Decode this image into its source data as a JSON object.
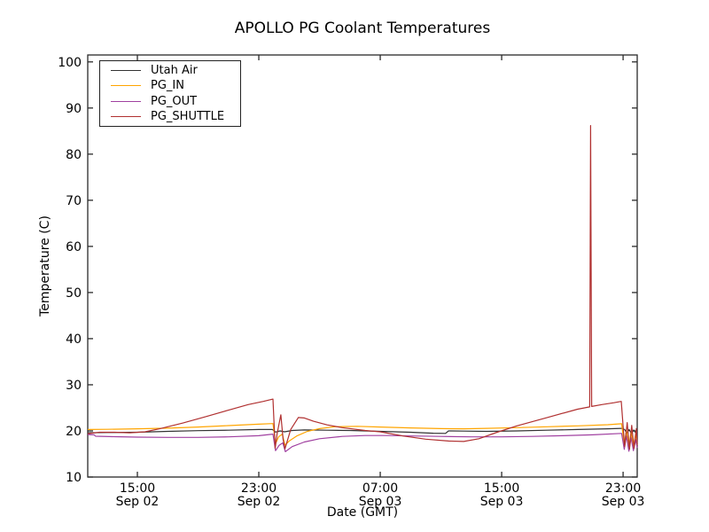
{
  "chart_data": {
    "type": "line",
    "title": "APOLLO PG Coolant Temperatures",
    "xlabel": "Date (GMT)",
    "ylabel": "Temperature (C)",
    "ylim": [
      10,
      100
    ],
    "y_ticks": [
      10,
      20,
      30,
      40,
      50,
      60,
      70,
      80,
      90,
      100
    ],
    "x_units_hours_since": "Sep 02 00:00 GMT",
    "x_range_hours": [
      11.73,
      47.93
    ],
    "x_ticks": [
      {
        "hours": 15,
        "time": "15:00",
        "date": "Sep 02"
      },
      {
        "hours": 23,
        "time": "23:00",
        "date": "Sep 02"
      },
      {
        "hours": 31,
        "time": "07:00",
        "date": "Sep 03"
      },
      {
        "hours": 39,
        "time": "15:00",
        "date": "Sep 03"
      },
      {
        "hours": 47,
        "time": "23:00",
        "date": "Sep 03"
      }
    ],
    "grid": false,
    "legend_position": "upper left",
    "series": [
      {
        "name": "Utah Air",
        "color": "#333333",
        "points": [
          [
            11.73,
            19.6
          ],
          [
            13,
            19.65
          ],
          [
            15,
            19.7
          ],
          [
            17,
            19.9
          ],
          [
            19,
            20.05
          ],
          [
            21,
            20.15
          ],
          [
            23,
            20.3
          ],
          [
            23.9,
            20.3
          ],
          [
            24.1,
            19.75
          ],
          [
            24.4,
            20.0
          ],
          [
            24.7,
            19.8
          ],
          [
            25.2,
            20.1
          ],
          [
            26,
            20.2
          ],
          [
            27.5,
            20.15
          ],
          [
            29,
            20.1
          ],
          [
            31,
            19.9
          ],
          [
            33,
            19.7
          ],
          [
            34.5,
            19.5
          ],
          [
            35.3,
            19.45
          ],
          [
            35.5,
            20.0
          ],
          [
            36.5,
            19.95
          ],
          [
            38,
            19.9
          ],
          [
            40,
            20.0
          ],
          [
            42,
            20.15
          ],
          [
            44,
            20.3
          ],
          [
            46,
            20.45
          ],
          [
            46.9,
            20.55
          ],
          [
            47.1,
            20.3
          ],
          [
            47.25,
            19.5
          ],
          [
            47.4,
            20.3
          ],
          [
            47.55,
            19.4
          ],
          [
            47.7,
            20.2
          ],
          [
            47.85,
            19.5
          ],
          [
            47.93,
            19.9
          ]
        ]
      },
      {
        "name": "PG_IN",
        "color": "#ffa500",
        "points": [
          [
            11.73,
            20.3
          ],
          [
            13,
            20.35
          ],
          [
            15,
            20.45
          ],
          [
            17,
            20.6
          ],
          [
            19,
            20.85
          ],
          [
            21,
            21.15
          ],
          [
            23,
            21.45
          ],
          [
            23.93,
            21.6
          ],
          [
            24.1,
            17.2
          ],
          [
            24.3,
            18.7
          ],
          [
            24.55,
            19.3
          ],
          [
            24.72,
            16.9
          ],
          [
            25,
            17.8
          ],
          [
            25.5,
            18.9
          ],
          [
            26.2,
            19.9
          ],
          [
            27,
            20.5
          ],
          [
            28,
            20.9
          ],
          [
            29.5,
            21.0
          ],
          [
            31,
            20.85
          ],
          [
            33,
            20.65
          ],
          [
            35,
            20.5
          ],
          [
            36.5,
            20.45
          ],
          [
            38,
            20.55
          ],
          [
            40,
            20.7
          ],
          [
            42,
            20.9
          ],
          [
            44,
            21.1
          ],
          [
            46,
            21.35
          ],
          [
            46.9,
            21.55
          ],
          [
            47.08,
            17.0
          ],
          [
            47.22,
            20.2
          ],
          [
            47.38,
            16.3
          ],
          [
            47.53,
            19.9
          ],
          [
            47.68,
            16.4
          ],
          [
            47.83,
            19.4
          ],
          [
            47.93,
            16.9
          ]
        ]
      },
      {
        "name": "PG_OUT",
        "color": "#a040a0",
        "points": [
          [
            11.73,
            19.2
          ],
          [
            12.15,
            19.15
          ],
          [
            12.25,
            18.85
          ],
          [
            13.5,
            18.75
          ],
          [
            15,
            18.65
          ],
          [
            17,
            18.6
          ],
          [
            19,
            18.6
          ],
          [
            21,
            18.7
          ],
          [
            23,
            18.95
          ],
          [
            23.93,
            19.3
          ],
          [
            24.1,
            15.7
          ],
          [
            24.35,
            16.9
          ],
          [
            24.58,
            17.4
          ],
          [
            24.75,
            15.5
          ],
          [
            25.2,
            16.6
          ],
          [
            26,
            17.6
          ],
          [
            27,
            18.3
          ],
          [
            28.5,
            18.8
          ],
          [
            30,
            19.0
          ],
          [
            31.5,
            19.0
          ],
          [
            33,
            18.9
          ],
          [
            35,
            18.8
          ],
          [
            37,
            18.7
          ],
          [
            39,
            18.7
          ],
          [
            41,
            18.8
          ],
          [
            43,
            18.95
          ],
          [
            45,
            19.15
          ],
          [
            46.9,
            19.45
          ],
          [
            47.08,
            16.0
          ],
          [
            47.22,
            18.9
          ],
          [
            47.38,
            15.6
          ],
          [
            47.53,
            18.5
          ],
          [
            47.68,
            15.7
          ],
          [
            47.83,
            18.1
          ],
          [
            47.93,
            16.3
          ]
        ]
      },
      {
        "name": "PG_SHUTTLE",
        "color": "#b03030",
        "points": [
          [
            11.73,
            19.4
          ],
          [
            12.5,
            19.7
          ],
          [
            13.5,
            19.7
          ],
          [
            14.5,
            19.6
          ],
          [
            15.5,
            19.8
          ],
          [
            16.5,
            20.5
          ],
          [
            18,
            21.7
          ],
          [
            19.5,
            23.1
          ],
          [
            21,
            24.5
          ],
          [
            22.3,
            25.7
          ],
          [
            23.3,
            26.4
          ],
          [
            23.93,
            26.9
          ],
          [
            24.08,
            16.2
          ],
          [
            24.2,
            19.3
          ],
          [
            24.45,
            23.5
          ],
          [
            24.6,
            18.2
          ],
          [
            24.72,
            16.1
          ],
          [
            25.1,
            20.3
          ],
          [
            25.6,
            22.9
          ],
          [
            26,
            22.8
          ],
          [
            26.6,
            22.1
          ],
          [
            27.5,
            21.3
          ],
          [
            28.5,
            20.7
          ],
          [
            30,
            20.1
          ],
          [
            31,
            19.8
          ],
          [
            32.5,
            18.9
          ],
          [
            34,
            18.2
          ],
          [
            35.5,
            17.8
          ],
          [
            36.5,
            17.7
          ],
          [
            37.5,
            18.3
          ],
          [
            38.7,
            19.7
          ],
          [
            40,
            21.1
          ],
          [
            42,
            22.9
          ],
          [
            44,
            24.7
          ],
          [
            44.8,
            25.2
          ],
          [
            44.86,
            86.2
          ],
          [
            44.93,
            25.3
          ],
          [
            45.6,
            25.7
          ],
          [
            46.4,
            26.1
          ],
          [
            46.88,
            26.4
          ],
          [
            47.1,
            16.6
          ],
          [
            47.27,
            21.8
          ],
          [
            47.42,
            16.0
          ],
          [
            47.57,
            21.2
          ],
          [
            47.72,
            16.2
          ],
          [
            47.87,
            20.5
          ],
          [
            47.93,
            17.0
          ]
        ]
      }
    ]
  }
}
